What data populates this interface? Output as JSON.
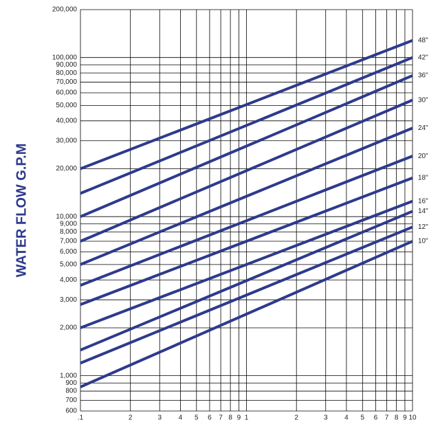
{
  "chart_data": {
    "type": "line",
    "y_label": "WATER FLOW G.P.M",
    "x": [
      0.1,
      10
    ],
    "series": [
      {
        "name": "48\"",
        "color": "#2e3a8c",
        "values": [
          20000,
          128000
        ]
      },
      {
        "name": "42\"",
        "color": "#2e3a8c",
        "values": [
          14000,
          100000
        ]
      },
      {
        "name": "36\"",
        "color": "#2e3a8c",
        "values": [
          10000,
          77000
        ]
      },
      {
        "name": "30\"",
        "color": "#2e3a8c",
        "values": [
          7000,
          54000
        ]
      },
      {
        "name": "24\"",
        "color": "#2e3a8c",
        "values": [
          5000,
          36000
        ]
      },
      {
        "name": "20\"",
        "color": "#2e3a8c",
        "values": [
          3700,
          24000
        ]
      },
      {
        "name": "18\"",
        "color": "#2e3a8c",
        "values": [
          2800,
          17500
        ]
      },
      {
        "name": "16\"",
        "color": "#2e3a8c",
        "values": [
          2000,
          12500
        ]
      },
      {
        "name": "14\"",
        "color": "#2e3a8c",
        "values": [
          1450,
          10800
        ]
      },
      {
        "name": "12\"",
        "color": "#2e3a8c",
        "values": [
          1200,
          8600
        ]
      },
      {
        "name": "10\"",
        "color": "#2e3a8c",
        "values": [
          850,
          7000
        ]
      }
    ],
    "xlog": true,
    "ylog": true,
    "xlim": [
      0.1,
      10
    ],
    "ylim": [
      600,
      200000
    ],
    "xticks": [
      {
        "value": 0.1,
        "label": ".1"
      },
      {
        "value": 0.2,
        "label": "2"
      },
      {
        "value": 0.3,
        "label": "3"
      },
      {
        "value": 0.4,
        "label": "4"
      },
      {
        "value": 0.5,
        "label": "5"
      },
      {
        "value": 0.6,
        "label": "6"
      },
      {
        "value": 0.7,
        "label": "7"
      },
      {
        "value": 0.8,
        "label": "8"
      },
      {
        "value": 0.9,
        "label": "9"
      },
      1,
      2,
      3,
      4,
      5,
      6,
      7,
      8,
      9,
      10
    ],
    "yticks": [
      {
        "value": 600,
        "label": "600"
      },
      {
        "value": 700,
        "label": "700"
      },
      {
        "value": 800,
        "label": "800"
      },
      {
        "value": 900,
        "label": "900"
      },
      {
        "value": 1000,
        "label": "1,000"
      },
      {
        "value": 2000,
        "label": "2,000"
      },
      {
        "value": 3000,
        "label": "3,000"
      },
      {
        "value": 4000,
        "label": "4,000"
      },
      {
        "value": 5000,
        "label": "5,000"
      },
      {
        "value": 6000,
        "label": "6,000"
      },
      {
        "value": 7000,
        "label": "7,000"
      },
      {
        "value": 8000,
        "label": "8,000"
      },
      {
        "value": 9000,
        "label": "9,000"
      },
      {
        "value": 10000,
        "label": "10,000"
      },
      {
        "value": 20000,
        "label": "20,000"
      },
      {
        "value": 30000,
        "label": "30,000"
      },
      {
        "value": 40000,
        "label": "40,000"
      },
      {
        "value": 50000,
        "label": "50,000"
      },
      {
        "value": 60000,
        "label": "60,000"
      },
      {
        "value": 70000,
        "label": "70,000"
      },
      {
        "value": 80000,
        "label": "80,000"
      },
      {
        "value": 90000,
        "label": "90,000"
      },
      {
        "value": 100000,
        "label": "100,000"
      },
      {
        "value": 200000,
        "label": "200,000"
      }
    ],
    "grid": true
  }
}
